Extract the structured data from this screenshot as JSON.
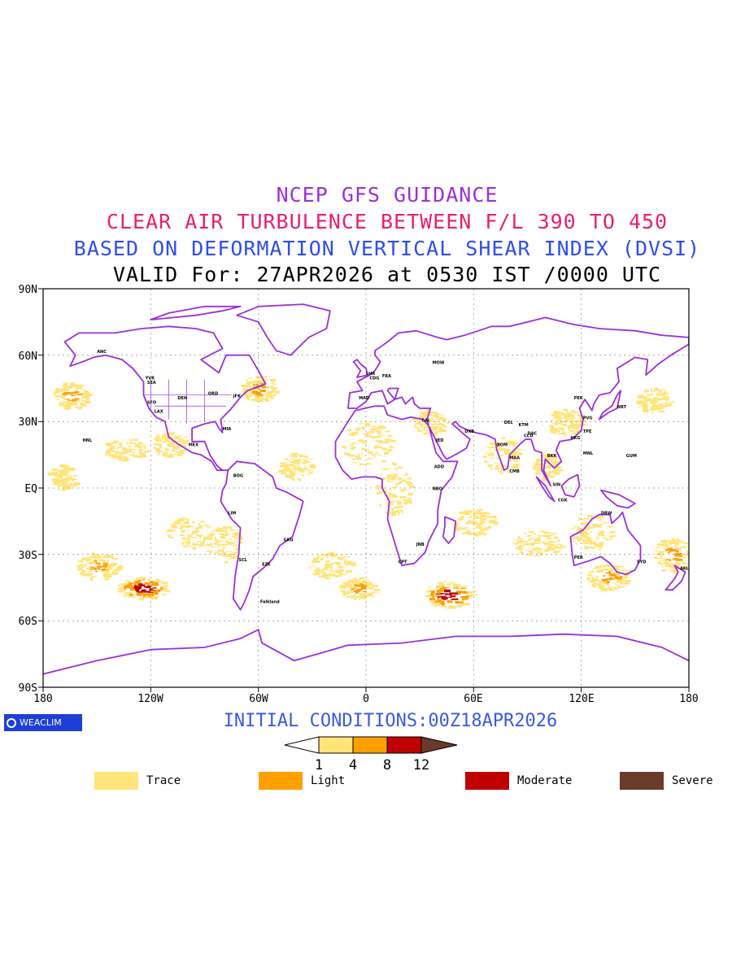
{
  "titles": {
    "line1": "NCEP GFS GUIDANCE",
    "line2": "CLEAR AIR TURBULENCE BETWEEN F/L 390 TO 450",
    "line3": "BASED ON DEFORMATION VERTICAL SHEAR INDEX (DVSI)",
    "line4": "VALID For: 27APR2026 at 0530 IST /0000 UTC"
  },
  "axes": {
    "lat_labels": [
      "90N",
      "60N",
      "30N",
      "EQ",
      "30S",
      "60S",
      "90S"
    ],
    "lon_labels": [
      "180",
      "120W",
      "60W",
      "0",
      "60E",
      "120E",
      "180"
    ]
  },
  "logo": {
    "text": "WEACLIM"
  },
  "initial_conditions": "INITIAL CONDITIONS:00Z18APR2026",
  "colorbar": {
    "ticks": [
      "1",
      "4",
      "8",
      "12"
    ],
    "colors": [
      "#ffffff",
      "#ffe47a",
      "#ffa000",
      "#c00000",
      "#6b3a2a"
    ]
  },
  "legend": [
    {
      "label": "Trace",
      "color": "#ffe47a"
    },
    {
      "label": "Light",
      "color": "#ffa000"
    },
    {
      "label": "Moderate",
      "color": "#c00000"
    },
    {
      "label": "Severe",
      "color": "#6b3a2a"
    }
  ],
  "colors": {
    "coast": "#9b30d9",
    "title1": "#9b30d9",
    "title2": "#e8206f",
    "title3": "#2e4ee8",
    "grid": "#999999"
  },
  "stations": [
    "ANC",
    "YVR",
    "SEA",
    "SFO",
    "LAX",
    "DEN",
    "ORD",
    "JFK",
    "MIA",
    "MEX",
    "HNL",
    "BOG",
    "LIM",
    "GRU",
    "EZE",
    "SCL",
    "Falkland",
    "LHR",
    "MAD",
    "CDG",
    "FRA",
    "MOW",
    "CAI",
    "JED",
    "DXB",
    "ADD",
    "NBO",
    "JNB",
    "CPT",
    "DEL",
    "BOM",
    "CCU",
    "MAA",
    "CMB",
    "DAC",
    "KTM",
    "BKK",
    "SIN",
    "CGK",
    "HKG",
    "PEK",
    "PVG",
    "TPE",
    "NRT",
    "MNL",
    "GUM",
    "DRW",
    "PER",
    "SYD",
    "AKL"
  ]
}
